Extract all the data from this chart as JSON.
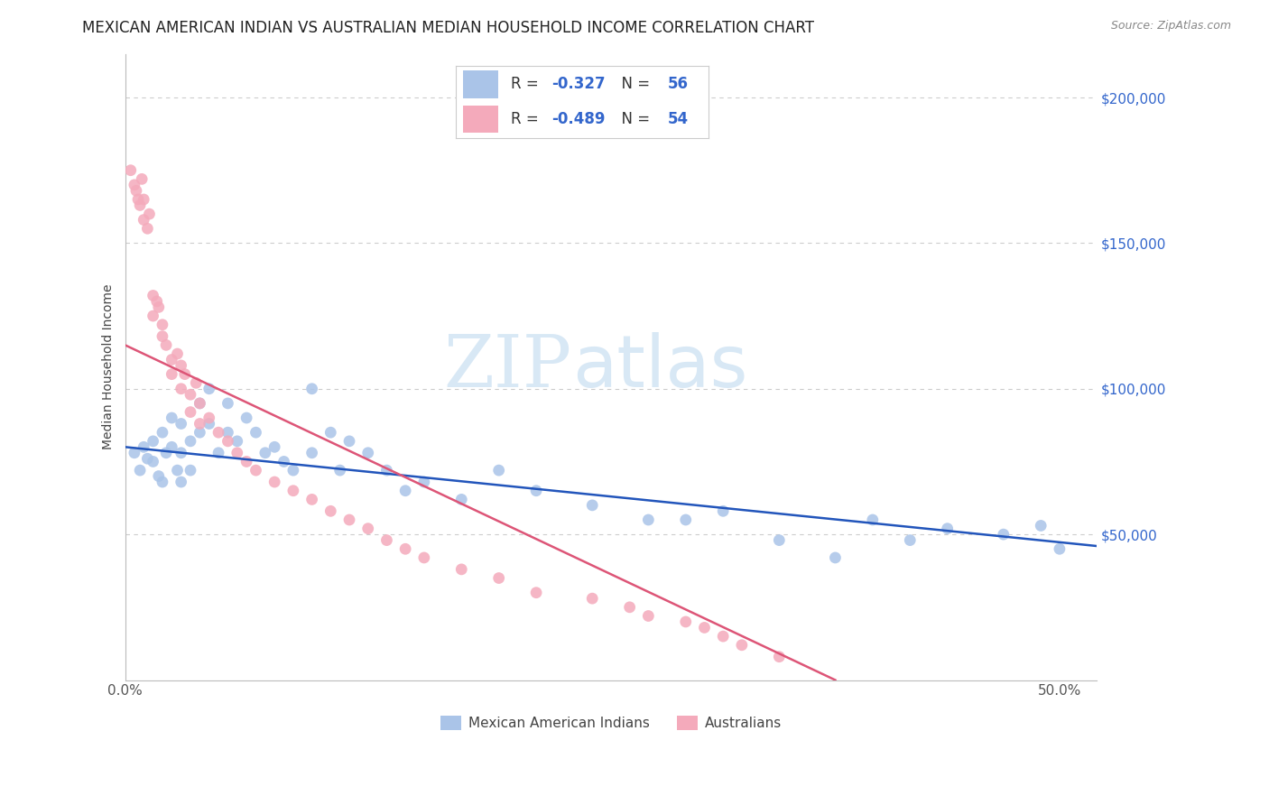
{
  "title": "MEXICAN AMERICAN INDIAN VS AUSTRALIAN MEDIAN HOUSEHOLD INCOME CORRELATION CHART",
  "source": "Source: ZipAtlas.com",
  "ylabel": "Median Household Income",
  "ytick_labels": [
    "$50,000",
    "$100,000",
    "$150,000",
    "$200,000"
  ],
  "ytick_values": [
    50000,
    100000,
    150000,
    200000
  ],
  "ylim": [
    0,
    215000
  ],
  "xlim": [
    0.0,
    0.52
  ],
  "legend_blue_label": "Mexican American Indians",
  "legend_pink_label": "Australians",
  "blue_scatter_x": [
    0.005,
    0.008,
    0.01,
    0.012,
    0.015,
    0.015,
    0.018,
    0.02,
    0.02,
    0.022,
    0.025,
    0.025,
    0.028,
    0.03,
    0.03,
    0.03,
    0.035,
    0.035,
    0.04,
    0.04,
    0.045,
    0.045,
    0.05,
    0.055,
    0.055,
    0.06,
    0.065,
    0.07,
    0.075,
    0.08,
    0.085,
    0.09,
    0.1,
    0.1,
    0.11,
    0.115,
    0.12,
    0.13,
    0.14,
    0.15,
    0.16,
    0.18,
    0.2,
    0.22,
    0.25,
    0.28,
    0.3,
    0.32,
    0.35,
    0.38,
    0.4,
    0.42,
    0.44,
    0.47,
    0.49,
    0.5
  ],
  "blue_scatter_y": [
    78000,
    72000,
    80000,
    76000,
    82000,
    75000,
    70000,
    85000,
    68000,
    78000,
    90000,
    80000,
    72000,
    88000,
    78000,
    68000,
    82000,
    72000,
    95000,
    85000,
    100000,
    88000,
    78000,
    95000,
    85000,
    82000,
    90000,
    85000,
    78000,
    80000,
    75000,
    72000,
    100000,
    78000,
    85000,
    72000,
    82000,
    78000,
    72000,
    65000,
    68000,
    62000,
    72000,
    65000,
    60000,
    55000,
    55000,
    58000,
    48000,
    42000,
    55000,
    48000,
    52000,
    50000,
    53000,
    45000
  ],
  "pink_scatter_x": [
    0.003,
    0.005,
    0.006,
    0.007,
    0.008,
    0.009,
    0.01,
    0.01,
    0.012,
    0.013,
    0.015,
    0.015,
    0.017,
    0.018,
    0.02,
    0.02,
    0.022,
    0.025,
    0.025,
    0.028,
    0.03,
    0.03,
    0.032,
    0.035,
    0.035,
    0.038,
    0.04,
    0.04,
    0.045,
    0.05,
    0.055,
    0.06,
    0.065,
    0.07,
    0.08,
    0.09,
    0.1,
    0.11,
    0.12,
    0.13,
    0.14,
    0.15,
    0.16,
    0.18,
    0.2,
    0.22,
    0.25,
    0.27,
    0.28,
    0.3,
    0.31,
    0.32,
    0.33,
    0.35
  ],
  "pink_scatter_y": [
    175000,
    170000,
    168000,
    165000,
    163000,
    172000,
    165000,
    158000,
    155000,
    160000,
    132000,
    125000,
    130000,
    128000,
    122000,
    118000,
    115000,
    110000,
    105000,
    112000,
    108000,
    100000,
    105000,
    98000,
    92000,
    102000,
    95000,
    88000,
    90000,
    85000,
    82000,
    78000,
    75000,
    72000,
    68000,
    65000,
    62000,
    58000,
    55000,
    52000,
    48000,
    45000,
    42000,
    38000,
    35000,
    30000,
    28000,
    25000,
    22000,
    20000,
    18000,
    15000,
    12000,
    8000
  ],
  "blue_line_x": [
    0.0,
    0.52
  ],
  "blue_line_y": [
    80000,
    46000
  ],
  "pink_line_x": [
    0.0,
    0.38
  ],
  "pink_line_y": [
    115000,
    0
  ],
  "scatter_size": 85,
  "blue_color": "#aac4e8",
  "pink_color": "#f4aabb",
  "blue_line_color": "#2255bb",
  "pink_line_color": "#dd5577",
  "watermark_zip": "ZIP",
  "watermark_atlas": "atlas",
  "watermark_color": "#d8e8f5",
  "grid_color": "#cccccc",
  "background_color": "#ffffff",
  "legend_color": "#3366cc",
  "title_fontsize": 12,
  "axis_label_fontsize": 10,
  "tick_fontsize": 11
}
